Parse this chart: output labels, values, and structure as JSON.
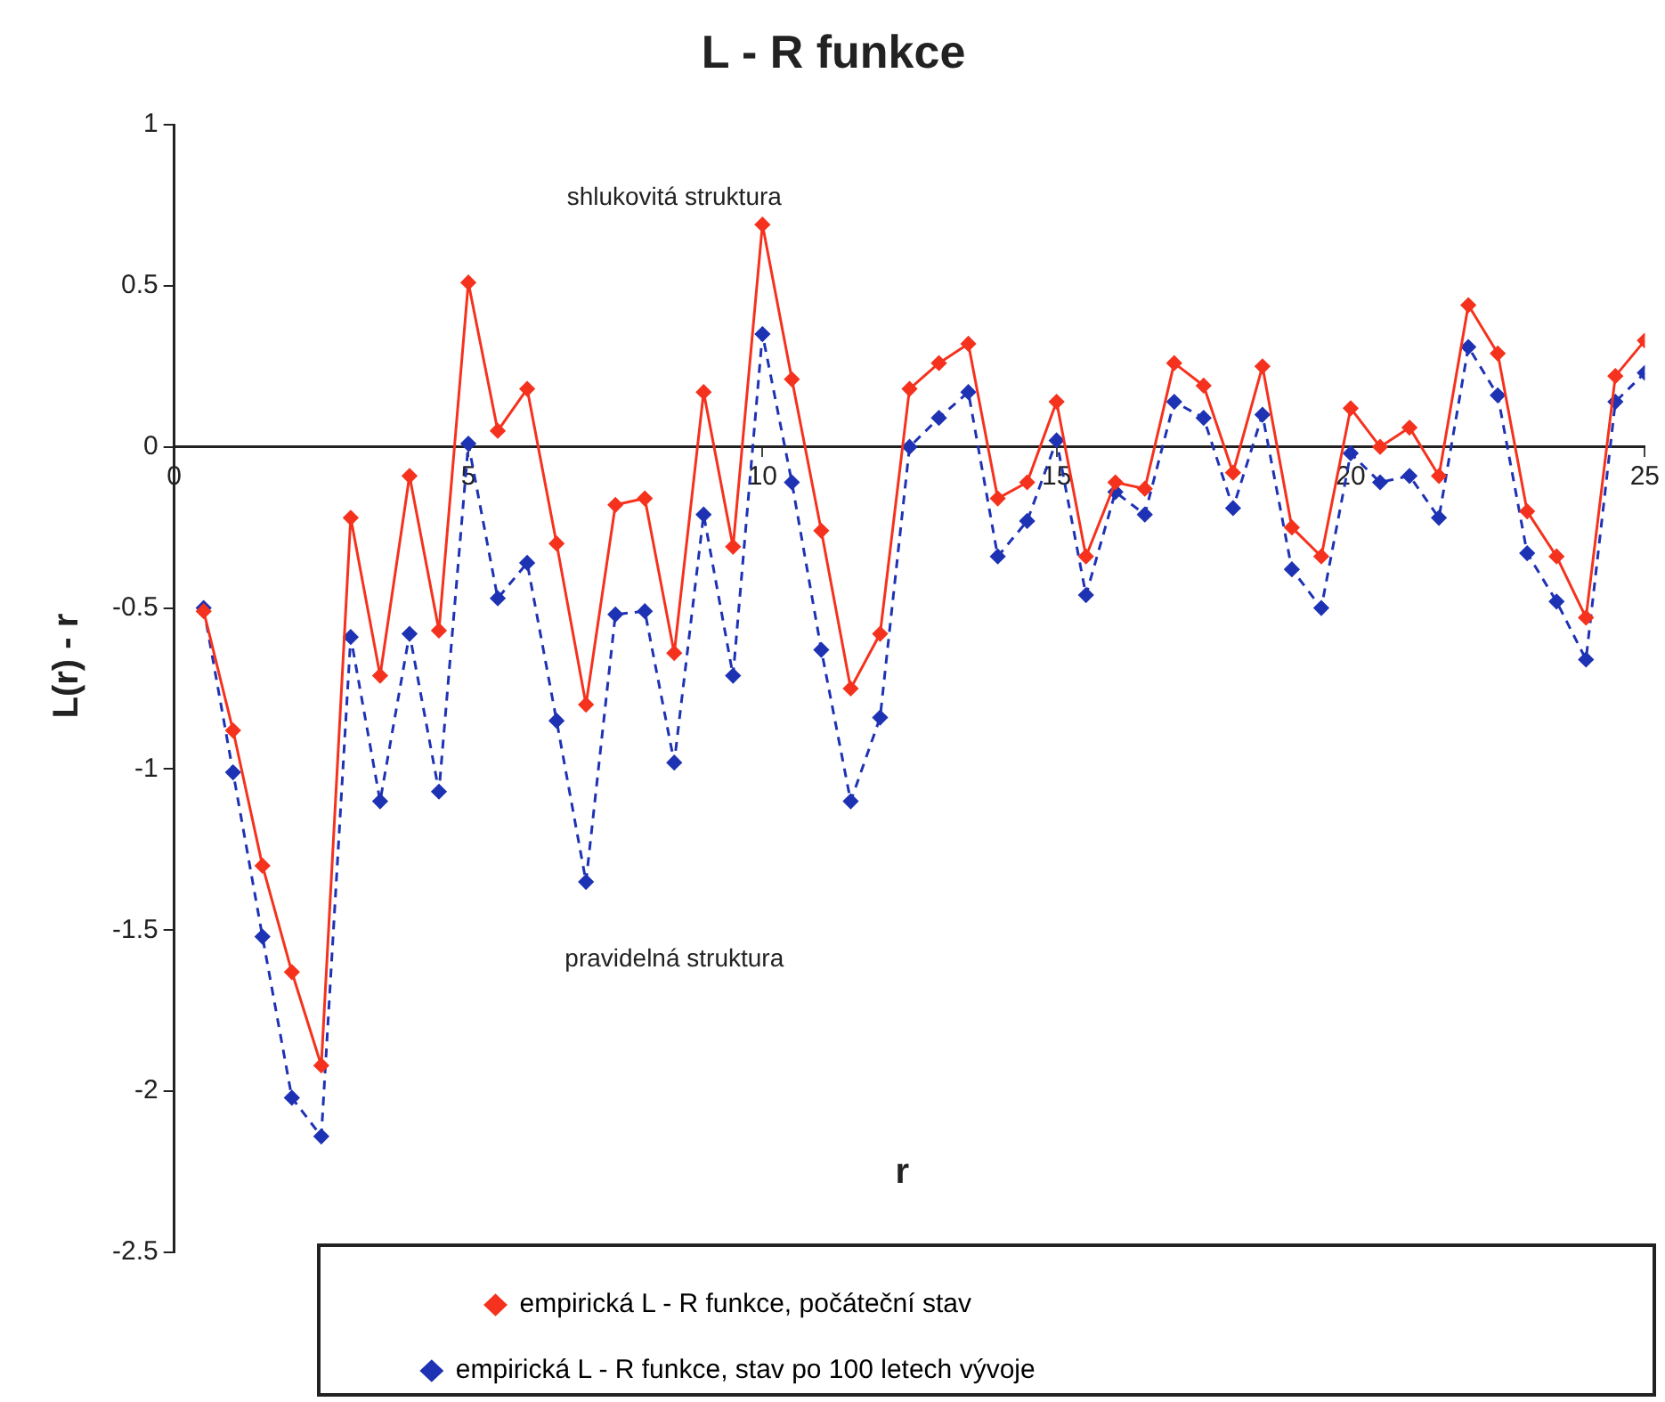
{
  "chart_data": {
    "type": "line",
    "title": "L - R funkce",
    "xlabel": "r",
    "ylabel": "L(r) - r",
    "x": [
      0.5,
      1,
      1.5,
      2,
      2.5,
      3,
      3.5,
      4,
      4.5,
      5,
      5.5,
      6,
      6.5,
      7,
      7.5,
      8,
      8.5,
      9,
      9.5,
      10,
      10.5,
      11,
      11.5,
      12,
      12.5,
      13,
      13.5,
      14,
      14.5,
      15,
      15.5,
      16,
      16.5,
      17,
      17.5,
      18,
      18.5,
      19,
      19.5,
      20,
      20.5,
      21,
      21.5,
      22,
      22.5,
      23,
      23.5,
      24,
      24.5,
      25
    ],
    "series": [
      {
        "name": "empirická L - R funkce, počáteční stav",
        "color": "#f5321e",
        "line_style": "solid",
        "values": [
          -0.51,
          -0.88,
          -1.3,
          -1.63,
          -1.92,
          -0.22,
          -0.71,
          -0.09,
          -0.57,
          0.51,
          0.05,
          0.18,
          -0.3,
          -0.8,
          -0.18,
          -0.16,
          -0.64,
          0.17,
          -0.31,
          0.69,
          0.21,
          -0.26,
          -0.75,
          -0.58,
          0.18,
          0.26,
          0.32,
          -0.16,
          -0.11,
          0.14,
          -0.34,
          -0.11,
          -0.13,
          0.26,
          0.19,
          -0.08,
          0.25,
          -0.25,
          -0.34,
          0.12,
          0,
          0.06,
          -0.09,
          0.44,
          0.29,
          -0.2,
          -0.34,
          -0.53,
          0.22,
          0.33
        ]
      },
      {
        "name": "empirická L - R funkce, stav po 100 letech vývoje",
        "color": "#1e32b4",
        "line_style": "dashed",
        "values": [
          -0.5,
          -1.01,
          -1.52,
          -2.02,
          -2.14,
          -0.59,
          -1.1,
          -0.58,
          -1.07,
          0.01,
          -0.47,
          -0.36,
          -0.85,
          -1.35,
          -0.52,
          -0.51,
          -0.98,
          -0.21,
          -0.71,
          0.35,
          -0.11,
          -0.63,
          -1.1,
          -0.84,
          0,
          0.09,
          0.17,
          -0.34,
          -0.23,
          0.02,
          -0.46,
          -0.14,
          -0.21,
          0.14,
          0.09,
          -0.19,
          0.1,
          -0.38,
          -0.5,
          -0.02,
          -0.11,
          -0.09,
          -0.22,
          0.31,
          0.16,
          -0.33,
          -0.48,
          -0.66,
          0.14,
          0.23
        ]
      }
    ],
    "xlim": [
      0,
      25
    ],
    "xticks": [
      0,
      5,
      10,
      15,
      20,
      25
    ],
    "ylim": [
      -2.5,
      1
    ],
    "yticks": [
      -2.5,
      -2,
      -1.5,
      -1,
      -0.5,
      0,
      0.5,
      1
    ],
    "grid": false,
    "legend": "bottom",
    "marker": "diamond",
    "annotations": [
      "shlukovitá struktura",
      "pravidelná struktura"
    ]
  }
}
